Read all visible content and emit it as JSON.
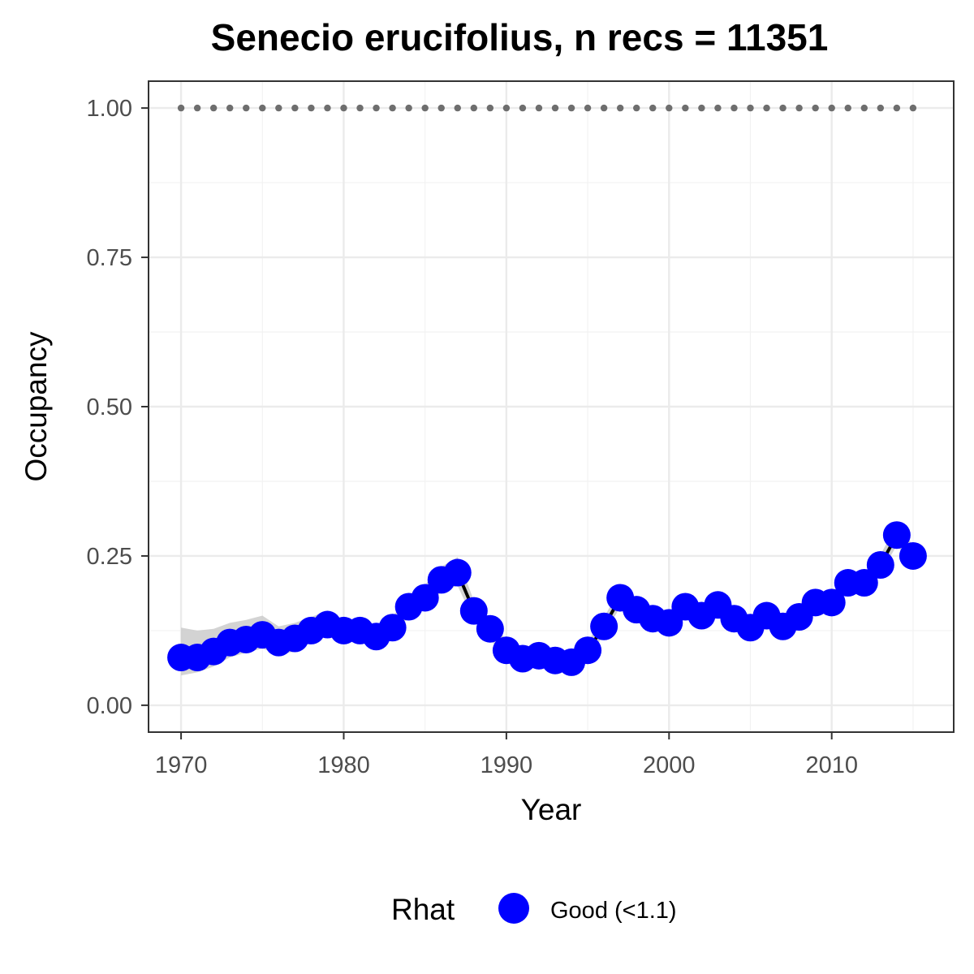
{
  "chart_data": {
    "type": "line",
    "title": "Senecio erucifolius, n recs = 11351",
    "xlabel": "Year",
    "ylabel": "Occupancy",
    "xlim": [
      1968,
      2017.5
    ],
    "ylim": [
      -0.045,
      1.045
    ],
    "x_ticks": [
      1970,
      1980,
      1990,
      2000,
      2010
    ],
    "x_tick_labels": [
      "1970",
      "1980",
      "1990",
      "2000",
      "2010"
    ],
    "y_ticks": [
      0,
      0.25,
      0.5,
      0.75,
      1
    ],
    "y_tick_labels": [
      "0.00",
      "0.25",
      "0.50",
      "0.75",
      "1.00"
    ],
    "grid": true,
    "legend": {
      "title": "Rhat",
      "position": "bottom",
      "entries": [
        {
          "label": "Good (<1.1)",
          "color": "#0000ff"
        }
      ]
    },
    "colors": {
      "points": "#0000ff",
      "line": "#000000",
      "ribbon": "#c8c8c8",
      "reference": "#6e6e6e"
    },
    "reference_line": {
      "y": 1.0,
      "style": "dotted"
    },
    "series": [
      {
        "x": [
          1970,
          1971,
          1972,
          1973,
          1974,
          1975,
          1976,
          1977,
          1978,
          1979,
          1980,
          1981,
          1982,
          1983,
          1984,
          1985,
          1986,
          1987,
          1988,
          1989,
          1990,
          1991,
          1992,
          1993,
          1994,
          1995,
          1996,
          1997,
          1998,
          1999,
          2000,
          2001,
          2002,
          2003,
          2004,
          2005,
          2006,
          2007,
          2008,
          2009,
          2010,
          2011,
          2012,
          2013,
          2014,
          2015
        ],
        "values": [
          0.08,
          0.08,
          0.09,
          0.105,
          0.11,
          0.118,
          0.105,
          0.112,
          0.125,
          0.135,
          0.125,
          0.125,
          0.115,
          0.13,
          0.165,
          0.18,
          0.21,
          0.222,
          0.158,
          0.128,
          0.092,
          0.078,
          0.083,
          0.075,
          0.072,
          0.092,
          0.132,
          0.18,
          0.16,
          0.145,
          0.138,
          0.165,
          0.15,
          0.168,
          0.145,
          0.13,
          0.15,
          0.132,
          0.148,
          0.172,
          0.172,
          0.205,
          0.205,
          0.235,
          0.285,
          0.25
        ],
        "lower": [
          0.05,
          0.055,
          0.065,
          0.08,
          0.088,
          0.095,
          0.085,
          0.09,
          0.105,
          0.115,
          0.11,
          0.11,
          0.1,
          0.115,
          0.148,
          0.162,
          0.19,
          0.2,
          0.142,
          0.11,
          0.078,
          0.065,
          0.07,
          0.062,
          0.06,
          0.078,
          0.118,
          0.165,
          0.145,
          0.13,
          0.123,
          0.15,
          0.135,
          0.152,
          0.13,
          0.115,
          0.135,
          0.118,
          0.133,
          0.157,
          0.157,
          0.19,
          0.19,
          0.22,
          0.268,
          0.233
        ],
        "upper": [
          0.13,
          0.125,
          0.128,
          0.138,
          0.143,
          0.15,
          0.132,
          0.138,
          0.148,
          0.158,
          0.142,
          0.142,
          0.132,
          0.148,
          0.185,
          0.202,
          0.232,
          0.248,
          0.175,
          0.146,
          0.108,
          0.092,
          0.097,
          0.088,
          0.085,
          0.107,
          0.147,
          0.196,
          0.176,
          0.16,
          0.154,
          0.181,
          0.166,
          0.184,
          0.16,
          0.145,
          0.166,
          0.147,
          0.163,
          0.188,
          0.188,
          0.221,
          0.221,
          0.252,
          0.303,
          0.268
        ]
      }
    ],
    "reference_x": [
      1970,
      1971,
      1972,
      1973,
      1974,
      1975,
      1976,
      1977,
      1978,
      1979,
      1980,
      1981,
      1982,
      1983,
      1984,
      1985,
      1986,
      1987,
      1988,
      1989,
      1990,
      1991,
      1992,
      1993,
      1994,
      1995,
      1996,
      1997,
      1998,
      1999,
      2000,
      2001,
      2002,
      2003,
      2004,
      2005,
      2006,
      2007,
      2008,
      2009,
      2010,
      2011,
      2012,
      2013,
      2014,
      2015
    ]
  }
}
